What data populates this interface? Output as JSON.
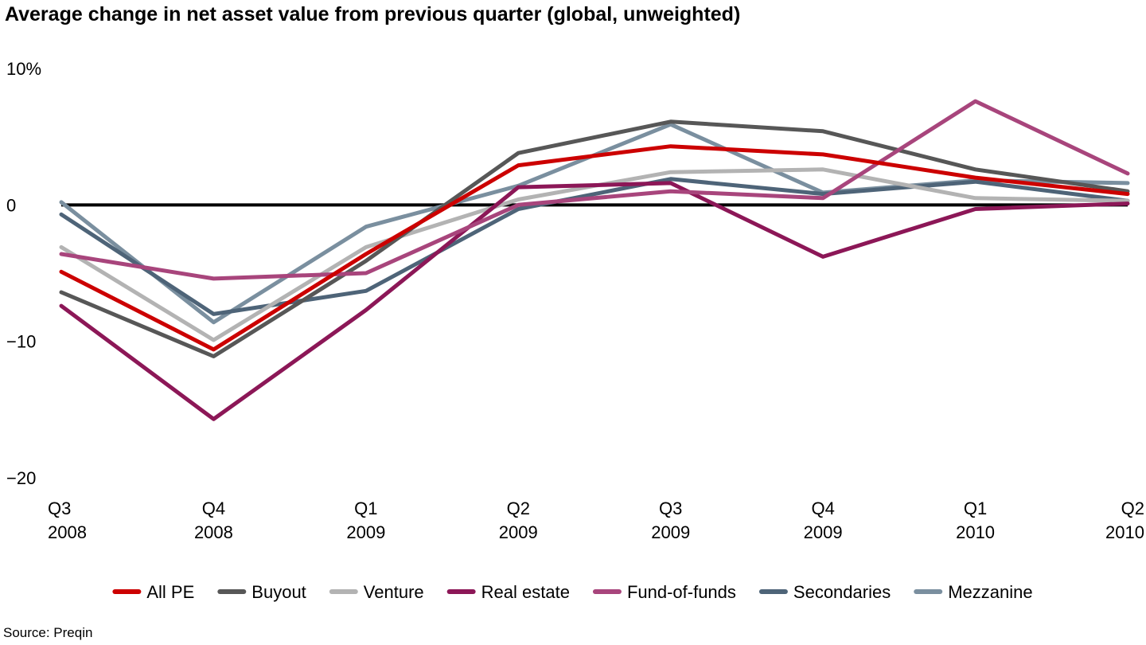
{
  "chart_data": {
    "type": "line",
    "title": "Average change in net asset value from previous quarter (global, unweighted)",
    "x": [
      {
        "quarter": "Q3",
        "year": "2008"
      },
      {
        "quarter": "Q4",
        "year": "2008"
      },
      {
        "quarter": "Q1",
        "year": "2009"
      },
      {
        "quarter": "Q2",
        "year": "2009"
      },
      {
        "quarter": "Q3",
        "year": "2009"
      },
      {
        "quarter": "Q4",
        "year": "2009"
      },
      {
        "quarter": "Q1",
        "year": "2010"
      },
      {
        "quarter": "Q2",
        "year": "2010"
      }
    ],
    "y_ticks": [
      {
        "value": 10,
        "label": "10%"
      },
      {
        "value": 0,
        "label": "0"
      },
      {
        "value": -10,
        "label": "−10"
      },
      {
        "value": -20,
        "label": "−20"
      }
    ],
    "ylim": [
      -20,
      10
    ],
    "zero_line": true,
    "grid": false,
    "legend_position": "bottom",
    "series": [
      {
        "name": "Mezzanine",
        "color": "#7a8f9f",
        "values": [
          0.2,
          -8.6,
          -1.6,
          1.4,
          5.9,
          0.9,
          1.8,
          1.6
        ]
      },
      {
        "name": "Secondaries",
        "color": "#4e6478",
        "values": [
          -0.7,
          -8.0,
          -6.3,
          -0.3,
          1.9,
          0.8,
          1.7,
          0.3
        ]
      },
      {
        "name": "Venture",
        "color": "#b3b3b3",
        "values": [
          -3.1,
          -9.9,
          -3.1,
          0.4,
          2.4,
          2.6,
          0.5,
          0.3
        ]
      },
      {
        "name": "Buyout",
        "color": "#575757",
        "values": [
          -6.4,
          -11.1,
          -4.1,
          3.8,
          6.1,
          5.4,
          2.6,
          1.0
        ]
      },
      {
        "name": "Real estate",
        "color": "#8c1757",
        "values": [
          -7.4,
          -15.7,
          -7.7,
          1.3,
          1.6,
          -3.8,
          -0.3,
          0.1
        ]
      },
      {
        "name": "Fund-of-funds",
        "color": "#a8457c",
        "values": [
          -3.6,
          -5.4,
          -5.0,
          0.0,
          1.0,
          0.5,
          7.6,
          2.3
        ]
      },
      {
        "name": "All PE",
        "color": "#cc0000",
        "values": [
          -4.9,
          -10.6,
          -3.6,
          2.9,
          4.3,
          3.7,
          2.0,
          0.8
        ]
      }
    ],
    "legend_order": [
      "All PE",
      "Buyout",
      "Venture",
      "Real estate",
      "Fund-of-funds",
      "Secondaries",
      "Mezzanine"
    ]
  },
  "source": "Source: Preqin"
}
